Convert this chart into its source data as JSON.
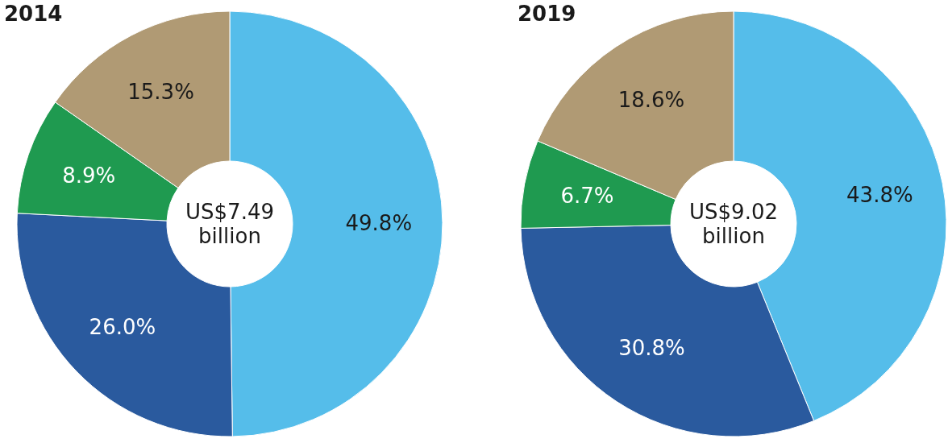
{
  "chart_data": [
    {
      "type": "donut",
      "title": "2014",
      "categories": [
        null,
        null,
        null,
        null
      ],
      "values": [
        49.8,
        26.0,
        8.9,
        15.3
      ],
      "colors": [
        "#55bdea",
        "#2a5a9e",
        "#1f9a50",
        "#b09a74"
      ],
      "value_labels": [
        "49.8%",
        "26.0%",
        "8.9%",
        "15.3%"
      ],
      "annotations": [
        "US$7.49 billion"
      ]
    },
    {
      "type": "donut",
      "title": "2019",
      "categories": [
        null,
        null,
        null,
        null
      ],
      "values": [
        43.8,
        30.8,
        6.7,
        18.6
      ],
      "colors": [
        "#55bdea",
        "#2a5a9e",
        "#1f9a50",
        "#b09a74"
      ],
      "value_labels": [
        "43.8%",
        "30.8%",
        "6.7%",
        "18.6%"
      ],
      "annotations": [
        "US$9.02 billion"
      ]
    }
  ]
}
